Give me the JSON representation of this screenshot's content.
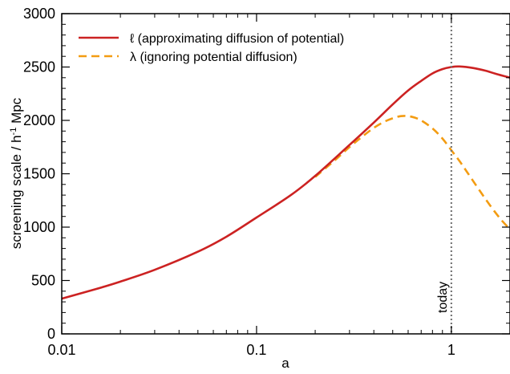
{
  "chart_data": {
    "type": "line",
    "xlabel": "a",
    "ylabel": {
      "main": "screening scale / h",
      "sup": "-1",
      "post": " Mpc"
    },
    "x_scale": "log",
    "xlim": [
      0.01,
      2
    ],
    "ylim": [
      0,
      3000
    ],
    "x_ticks": [
      {
        "value": 0.01,
        "label": "0.01"
      },
      {
        "value": 0.1,
        "label": "0.1"
      },
      {
        "value": 1,
        "label": "1"
      }
    ],
    "y_ticks": [
      {
        "value": 0,
        "label": "0"
      },
      {
        "value": 500,
        "label": "500"
      },
      {
        "value": 1000,
        "label": "1000"
      },
      {
        "value": 1500,
        "label": "1500"
      },
      {
        "value": 2000,
        "label": "2000"
      },
      {
        "value": 2500,
        "label": "2500"
      },
      {
        "value": 3000,
        "label": "3000"
      }
    ],
    "legend_position": "top-left",
    "series": [
      {
        "name": "ℓ (approximating diffusion of potential)",
        "color": "#cc2222",
        "style": "solid",
        "points": [
          [
            0.01,
            330
          ],
          [
            0.015,
            420
          ],
          [
            0.02,
            490
          ],
          [
            0.03,
            600
          ],
          [
            0.05,
            770
          ],
          [
            0.07,
            910
          ],
          [
            0.1,
            1090
          ],
          [
            0.15,
            1300
          ],
          [
            0.2,
            1480
          ],
          [
            0.3,
            1770
          ],
          [
            0.4,
            1980
          ],
          [
            0.5,
            2150
          ],
          [
            0.6,
            2280
          ],
          [
            0.7,
            2370
          ],
          [
            0.8,
            2440
          ],
          [
            0.9,
            2480
          ],
          [
            1.0,
            2500
          ],
          [
            1.1,
            2505
          ],
          [
            1.3,
            2490
          ],
          [
            1.5,
            2465
          ],
          [
            1.7,
            2435
          ],
          [
            2.0,
            2400
          ]
        ]
      },
      {
        "name": "λ (ignoring potential diffusion)",
        "color": "#f39c12",
        "style": "dashed",
        "points": [
          [
            0.2,
            1470
          ],
          [
            0.25,
            1620
          ],
          [
            0.3,
            1750
          ],
          [
            0.35,
            1850
          ],
          [
            0.4,
            1930
          ],
          [
            0.45,
            1985
          ],
          [
            0.5,
            2020
          ],
          [
            0.55,
            2040
          ],
          [
            0.6,
            2040
          ],
          [
            0.65,
            2025
          ],
          [
            0.7,
            2000
          ],
          [
            0.8,
            1925
          ],
          [
            0.9,
            1830
          ],
          [
            1.0,
            1720
          ],
          [
            1.1,
            1620
          ],
          [
            1.2,
            1520
          ],
          [
            1.4,
            1340
          ],
          [
            1.6,
            1190
          ],
          [
            1.8,
            1070
          ],
          [
            2.0,
            980
          ]
        ]
      }
    ],
    "annotations": [
      {
        "type": "vline",
        "x": 1,
        "color": "#777777",
        "style": "dotted",
        "label": "today"
      }
    ]
  }
}
